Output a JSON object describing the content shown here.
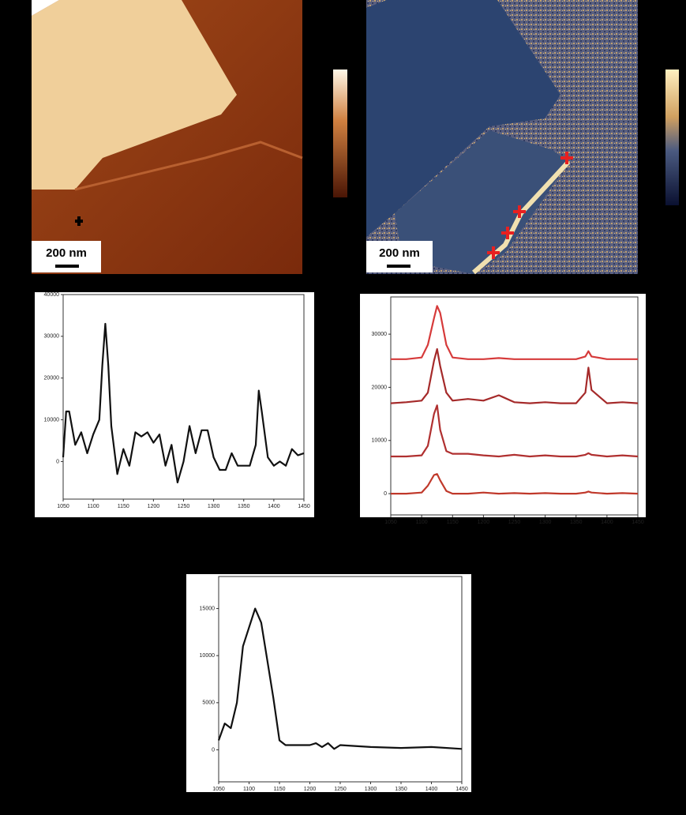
{
  "images": [
    {
      "scale_bar": "200 nm"
    },
    {
      "scale_bar": "200 nm"
    }
  ],
  "chart_data": [
    {
      "type": "line",
      "color": "#111111",
      "x": [
        1050,
        1055,
        1060,
        1070,
        1080,
        1090,
        1100,
        1110,
        1115,
        1120,
        1125,
        1130,
        1140,
        1150,
        1160,
        1170,
        1180,
        1190,
        1200,
        1210,
        1220,
        1230,
        1240,
        1250,
        1260,
        1270,
        1280,
        1290,
        1300,
        1310,
        1320,
        1330,
        1340,
        1350,
        1360,
        1370,
        1375,
        1380,
        1390,
        1400,
        1410,
        1420,
        1430,
        1440,
        1450
      ],
      "values": [
        1000,
        12000,
        12000,
        4000,
        7000,
        2000,
        6500,
        10000,
        23000,
        33000,
        23000,
        8500,
        -3000,
        3000,
        -1000,
        7000,
        6000,
        7000,
        4500,
        6500,
        -1000,
        4000,
        -5000,
        0,
        8500,
        2000,
        7500,
        7500,
        1000,
        -2000,
        -2000,
        2000,
        -1000,
        -1000,
        -1000,
        4000,
        17000,
        12000,
        1000,
        -1000,
        0,
        -1000,
        3000,
        1500,
        2000
      ],
      "xlim": [
        1050,
        1450
      ],
      "xticks": [
        1050,
        1100,
        1150,
        1200,
        1250,
        1300,
        1350,
        1400,
        1450
      ],
      "ylim": [
        -9000,
        40000
      ],
      "yticks": [
        0,
        10000,
        20000,
        30000,
        40000
      ]
    },
    {
      "type": "line",
      "x": [
        1050,
        1075,
        1100,
        1110,
        1120,
        1125,
        1130,
        1140,
        1150,
        1175,
        1200,
        1225,
        1250,
        1275,
        1300,
        1325,
        1350,
        1365,
        1370,
        1375,
        1400,
        1425,
        1450
      ],
      "series": [
        {
          "color": "#c0392b",
          "values": [
            0,
            0,
            200,
            1500,
            3500,
            3700,
            2500,
            500,
            0,
            0,
            200,
            0,
            100,
            0,
            100,
            0,
            0,
            200,
            400,
            200,
            0,
            100,
            0
          ]
        },
        {
          "color": "#b03030",
          "values": [
            7000,
            7000,
            7200,
            9000,
            15000,
            16600,
            12000,
            8000,
            7500,
            7500,
            7200,
            7000,
            7300,
            7000,
            7200,
            7000,
            7000,
            7300,
            7600,
            7300,
            7000,
            7200,
            7000
          ]
        },
        {
          "color": "#a52a2a",
          "values": [
            17000,
            17200,
            17500,
            19000,
            25000,
            27200,
            24000,
            19000,
            17500,
            17800,
            17500,
            18500,
            17200,
            17000,
            17200,
            17000,
            17000,
            19000,
            23700,
            19500,
            17000,
            17200,
            17000
          ]
        },
        {
          "color": "#d63a3a",
          "values": [
            25300,
            25300,
            25600,
            28000,
            33000,
            35300,
            34000,
            28000,
            25600,
            25300,
            25300,
            25500,
            25300,
            25300,
            25300,
            25300,
            25300,
            25800,
            26800,
            25800,
            25300,
            25300,
            25300
          ]
        }
      ],
      "xlim": [
        1050,
        1450
      ],
      "xticks": [
        1050,
        1100,
        1150,
        1200,
        1250,
        1300,
        1350,
        1400,
        1450
      ],
      "ylim": [
        -4000,
        37000
      ],
      "yticks": [
        0,
        10000,
        20000,
        30000
      ]
    },
    {
      "type": "line",
      "color": "#111111",
      "x": [
        1050,
        1060,
        1070,
        1080,
        1090,
        1100,
        1110,
        1120,
        1130,
        1140,
        1150,
        1160,
        1200,
        1210,
        1220,
        1230,
        1240,
        1250,
        1300,
        1350,
        1400,
        1450
      ],
      "values": [
        1000,
        2800,
        2300,
        5000,
        11000,
        13000,
        15000,
        13500,
        9500,
        5500,
        1000,
        500,
        500,
        700,
        300,
        700,
        100,
        500,
        300,
        200,
        300,
        100
      ],
      "xlim": [
        1050,
        1450
      ],
      "xticks": [
        1050,
        1100,
        1150,
        1200,
        1250,
        1300,
        1350,
        1400,
        1450
      ],
      "ylim": [
        -3400,
        18400
      ],
      "yticks": [
        0,
        5000,
        10000,
        15000
      ]
    }
  ]
}
